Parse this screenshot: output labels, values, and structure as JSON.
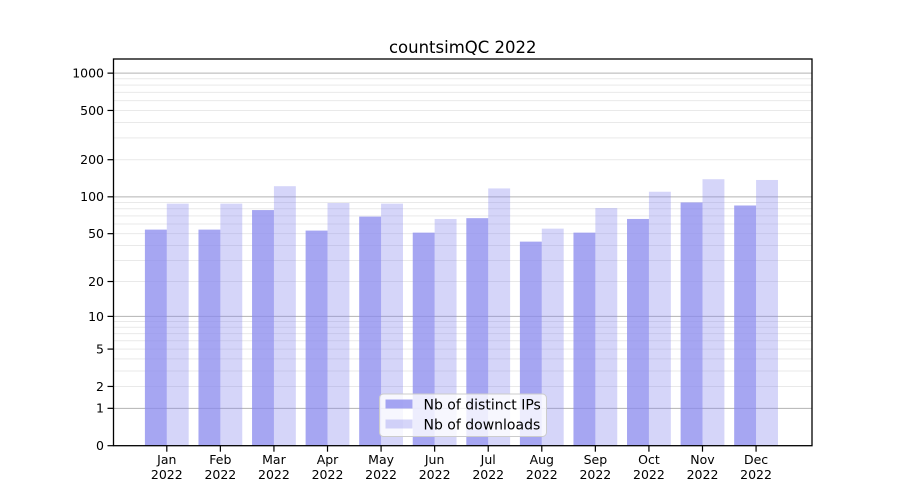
{
  "title": "countsimQC 2022",
  "chart_data": {
    "type": "bar",
    "title": "countsimQC 2022",
    "categories": [
      "Jan 2022",
      "Feb 2022",
      "Mar 2022",
      "Apr 2022",
      "May 2022",
      "Jun 2022",
      "Jul 2022",
      "Aug 2022",
      "Sep 2022",
      "Oct 2022",
      "Nov 2022",
      "Dec 2022"
    ],
    "series": [
      {
        "name": "Nb of distinct IPs",
        "alpha": 0.75,
        "values": [
          54,
          54,
          78,
          53,
          69,
          51,
          67,
          43,
          51,
          66,
          90,
          85
        ]
      },
      {
        "name": "Nb of downloads",
        "alpha": 0.35,
        "values": [
          88,
          88,
          122,
          89,
          88,
          66,
          117,
          55,
          81,
          110,
          139,
          137
        ]
      }
    ],
    "xlabel": "",
    "ylabel": "",
    "y_scale": "log10(value+1)",
    "ylim": [
      0,
      1300
    ],
    "y_ticks": [
      0,
      1,
      2,
      5,
      10,
      20,
      50,
      100,
      200,
      500,
      1000
    ],
    "y_major_gridlines": [
      1,
      10,
      100,
      1000
    ],
    "y_minor_gridlines": [
      2,
      3,
      4,
      5,
      6,
      7,
      8,
      9,
      20,
      30,
      40,
      50,
      60,
      70,
      80,
      90,
      200,
      300,
      400,
      500,
      600,
      700,
      800,
      900
    ],
    "grid": true,
    "legend_position": "lower center"
  },
  "colors": {
    "bar_base": "#8888ee",
    "grid_minor": "#e9e9e9",
    "grid_major": "#b3b3b3",
    "axis": "#000000",
    "legend_border": "#cccccc"
  }
}
